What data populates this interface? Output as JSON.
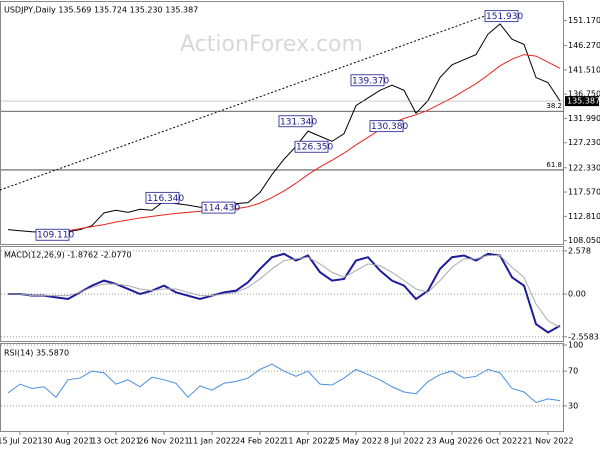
{
  "chart_data": [
    {
      "type": "line",
      "title": "USDJPY,Daily 135.569 135.724 135.230 135.387",
      "watermark": "ActionForex.com",
      "ylim": [
        107.2,
        154.8
      ],
      "yticks": [
        {
          "value": 151.17,
          "label": "151.170"
        },
        {
          "value": 146.27,
          "label": "146.270"
        },
        {
          "value": 141.51,
          "label": "141.510"
        },
        {
          "value": 136.75,
          "label": "136.750"
        },
        {
          "value": 131.99,
          "label": "131.990"
        },
        {
          "value": 127.23,
          "label": "127.230"
        },
        {
          "value": 122.33,
          "label": "122.330"
        },
        {
          "value": 117.57,
          "label": "117.570"
        },
        {
          "value": 112.81,
          "label": "112.810"
        },
        {
          "value": 108.05,
          "label": "108.050"
        }
      ],
      "grid": false,
      "series": [
        {
          "color": "#000000",
          "values": [
            110.2,
            110.0,
            109.8,
            109.7,
            109.9,
            109.8,
            110.2,
            111.0,
            113.5,
            114.0,
            113.6,
            114.2,
            114.0,
            115.8,
            115.3,
            115.0,
            114.6,
            114.6,
            115.0,
            115.3,
            115.5,
            117.5,
            121.0,
            124.0,
            126.5,
            129.5,
            128.5,
            127.5,
            129.0,
            134.5,
            136.0,
            137.5,
            138.5,
            137.5,
            133.0,
            135.5,
            140.0,
            142.5,
            143.5,
            144.5,
            148.5,
            150.5,
            147.5,
            146.5,
            140.0,
            139.0,
            135.4
          ]
        },
        {
          "color": "#e8231e",
          "values": [
            null,
            null,
            null,
            null,
            null,
            110.0,
            110.4,
            110.8,
            111.2,
            111.7,
            112.1,
            112.5,
            112.8,
            113.1,
            113.4,
            113.6,
            113.8,
            113.9,
            114.1,
            114.3,
            114.7,
            115.4,
            116.5,
            117.8,
            119.3,
            121.0,
            122.5,
            123.8,
            125.2,
            126.8,
            128.3,
            129.8,
            131.0,
            132.0,
            132.7,
            133.6,
            134.8,
            136.0,
            137.4,
            138.8,
            140.5,
            142.3,
            143.6,
            144.5,
            144.2,
            143.0,
            141.8
          ]
        }
      ],
      "annotations": [
        {
          "value": 151.93,
          "label": "151.930"
        },
        {
          "value": 139.37,
          "label": "139.370"
        },
        {
          "value": 131.34,
          "label": "131.340"
        },
        {
          "value": 130.38,
          "label": "130.380"
        },
        {
          "value": 126.35,
          "label": "126.350"
        },
        {
          "value": 116.34,
          "label": "116.340"
        },
        {
          "value": 114.43,
          "label": "114.430"
        },
        {
          "value": 109.11,
          "label": "109.110"
        }
      ],
      "levels": [
        {
          "value": 133.4,
          "label": "38.2"
        },
        {
          "value": 121.9,
          "label": "61.8"
        }
      ],
      "last": {
        "value": 135.387,
        "label": "135.387"
      }
    },
    {
      "type": "line",
      "title": "MACD(12,26,9) -1.8762 -2.0770",
      "ylim": [
        -2.87,
        2.81
      ],
      "yticks": [
        2.578,
        {
          "value": 0,
          "label": "0.00"
        },
        -2.5583
      ],
      "grid": true,
      "series": [
        {
          "color": "#1c1c9c",
          "values": [
            0.0,
            0.0,
            -0.1,
            -0.1,
            -0.2,
            -0.3,
            0.1,
            0.5,
            0.8,
            0.6,
            0.3,
            0.0,
            0.2,
            0.5,
            0.1,
            -0.1,
            -0.3,
            -0.1,
            0.1,
            0.2,
            0.7,
            1.5,
            2.2,
            2.4,
            2.0,
            2.3,
            1.3,
            0.8,
            0.9,
            2.0,
            2.2,
            1.4,
            0.8,
            0.5,
            -0.3,
            0.2,
            1.5,
            2.2,
            2.3,
            2.0,
            2.4,
            2.3,
            1.0,
            0.5,
            -1.8,
            -2.3,
            -1.9
          ]
        },
        {
          "color": "#aaaaaa",
          "values": [
            0.0,
            0.0,
            -0.1,
            -0.1,
            -0.1,
            -0.1,
            0.1,
            0.4,
            0.6,
            0.6,
            0.5,
            0.3,
            0.2,
            0.3,
            0.3,
            0.1,
            -0.1,
            -0.1,
            0.0,
            0.1,
            0.4,
            0.9,
            1.5,
            2.0,
            2.1,
            2.2,
            1.8,
            1.3,
            1.0,
            1.4,
            1.8,
            1.7,
            1.3,
            0.8,
            0.3,
            0.1,
            0.8,
            1.6,
            2.1,
            2.1,
            2.3,
            2.3,
            1.6,
            1.0,
            -0.6,
            -1.6,
            -2.0
          ]
        }
      ]
    },
    {
      "type": "line",
      "title": "RSI(14) 35.5870",
      "ylim": [
        0,
        100
      ],
      "yticks": [
        100,
        70,
        30
      ],
      "grid": true,
      "categories": [
        null,
        "15 Jul 2021",
        null,
        null,
        null,
        "30 Aug 2021",
        null,
        null,
        null,
        "13 Oct 2021",
        null,
        null,
        null,
        "26 Nov 2021",
        null,
        null,
        null,
        "11 Jan 2022",
        null,
        null,
        null,
        "24 Feb 2022",
        null,
        null,
        null,
        "11 Apr 2022",
        null,
        null,
        null,
        "25 May 2022",
        null,
        null,
        null,
        "8 Jul 2022",
        null,
        null,
        null,
        "23 Aug 2022",
        null,
        null,
        null,
        "6 Oct 2022",
        null,
        null,
        null,
        "21 Nov 2022",
        null
      ],
      "series": [
        {
          "color": "#4a8fe0",
          "values": [
            45,
            55,
            50,
            52,
            40,
            60,
            62,
            70,
            68,
            55,
            60,
            52,
            63,
            60,
            56,
            40,
            53,
            48,
            56,
            58,
            62,
            72,
            78,
            70,
            64,
            70,
            55,
            54,
            62,
            72,
            66,
            60,
            52,
            46,
            44,
            58,
            66,
            70,
            62,
            64,
            72,
            68,
            50,
            46,
            34,
            38,
            36
          ]
        }
      ]
    }
  ]
}
